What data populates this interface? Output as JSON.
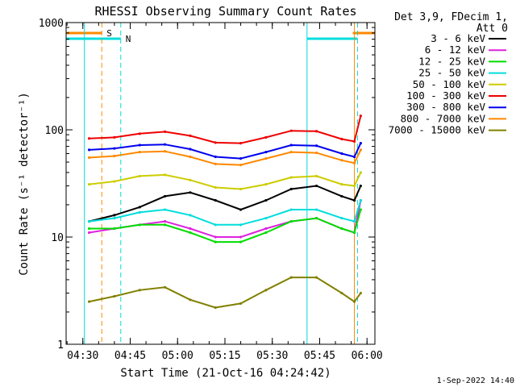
{
  "chart_data": {
    "type": "line",
    "title": "RHESSI Observing Summary Count Rates",
    "xlabel": "Start Time (21-Oct-16 04:24:42)",
    "ylabel": "Count Rate (s⁻¹ detector⁻¹)",
    "y_scale": "log",
    "ylim": [
      1,
      1000
    ],
    "xlim": [
      "04:24:42",
      "06:02:30"
    ],
    "x_ticks": [
      "04:30",
      "04:45",
      "05:00",
      "05:15",
      "05:30",
      "05:45",
      "06:00"
    ],
    "y_ticks": [
      "1",
      "10",
      "100",
      "1000"
    ],
    "grid": false,
    "legend_position": "right-outside",
    "legend_header": [
      "Det 3,9, FDecim 1,",
      "Att 0"
    ],
    "footer_date": "1-Sep-2022 14:40",
    "x_sample_times": [
      "04:32",
      "04:40",
      "04:48",
      "04:56",
      "05:04",
      "05:12",
      "05:20",
      "05:28",
      "05:36",
      "05:44",
      "05:52",
      "05:56",
      "05:58"
    ],
    "series": [
      {
        "name": "3 - 6 keV",
        "color": "#000000",
        "values": [
          14,
          16,
          19,
          24,
          26,
          22,
          18,
          22,
          28,
          30,
          24,
          22,
          30
        ]
      },
      {
        "name": "6 - 12 keV",
        "color": "#dd22dd",
        "values": [
          11,
          12,
          13,
          14,
          12,
          10,
          10,
          12,
          14,
          15,
          12,
          11,
          22
        ]
      },
      {
        "name": "12 - 25 keV",
        "color": "#00dd00",
        "values": [
          12,
          12,
          13,
          13,
          11,
          9,
          9,
          11,
          14,
          15,
          12,
          11,
          18
        ]
      },
      {
        "name": "25 - 50 keV",
        "color": "#00dddd",
        "values": [
          14,
          15,
          17,
          18,
          16,
          13,
          13,
          15,
          18,
          18,
          15,
          14,
          22
        ]
      },
      {
        "name": "50 - 100 keV",
        "color": "#cccc00",
        "values": [
          31,
          33,
          37,
          38,
          34,
          29,
          28,
          31,
          36,
          37,
          31,
          30,
          40
        ]
      },
      {
        "name": "100 - 300 keV",
        "color": "#ee0000",
        "values": [
          83,
          85,
          92,
          96,
          88,
          76,
          75,
          85,
          98,
          97,
          82,
          78,
          135
        ]
      },
      {
        "name": "300 - 800 keV",
        "color": "#0000ee",
        "values": [
          65,
          67,
          72,
          73,
          66,
          56,
          54,
          62,
          72,
          71,
          60,
          56,
          75
        ]
      },
      {
        "name": "800 - 7000 keV",
        "color": "#ff8800",
        "values": [
          55,
          57,
          62,
          63,
          56,
          48,
          47,
          54,
          62,
          61,
          52,
          49,
          65
        ]
      },
      {
        "name": "7000 - 15000 keV",
        "color": "#808000",
        "values": [
          2.5,
          2.8,
          3.2,
          3.4,
          2.6,
          2.2,
          2.4,
          3.2,
          4.2,
          4.2,
          3.0,
          2.5,
          3.0
        ]
      }
    ],
    "flags": [
      {
        "label": "S",
        "color": "#ff8800",
        "from": "04:24:42",
        "to": "04:36:00"
      },
      {
        "label": "",
        "color": "#ff8800",
        "from": "05:55:30",
        "to": "06:02:30"
      },
      {
        "label": "N",
        "color": "#00dddd",
        "from": "04:24:42",
        "to": "04:42:00"
      },
      {
        "label": "",
        "color": "#00dddd",
        "from": "05:41:00",
        "to": "05:57:00"
      }
    ],
    "vlines": [
      {
        "time": "04:30:30",
        "color": "#00dddd",
        "style": "solid"
      },
      {
        "time": "04:36:00",
        "color": "#ff8800",
        "style": "dashed"
      },
      {
        "time": "04:42:00",
        "color": "#00dddd",
        "style": "dashed"
      },
      {
        "time": "05:41:00",
        "color": "#00dddd",
        "style": "solid"
      },
      {
        "time": "05:56:00",
        "color": "#ff8800",
        "style": "solid"
      },
      {
        "time": "05:57:00",
        "color": "#00dddd",
        "style": "dashed"
      }
    ]
  }
}
